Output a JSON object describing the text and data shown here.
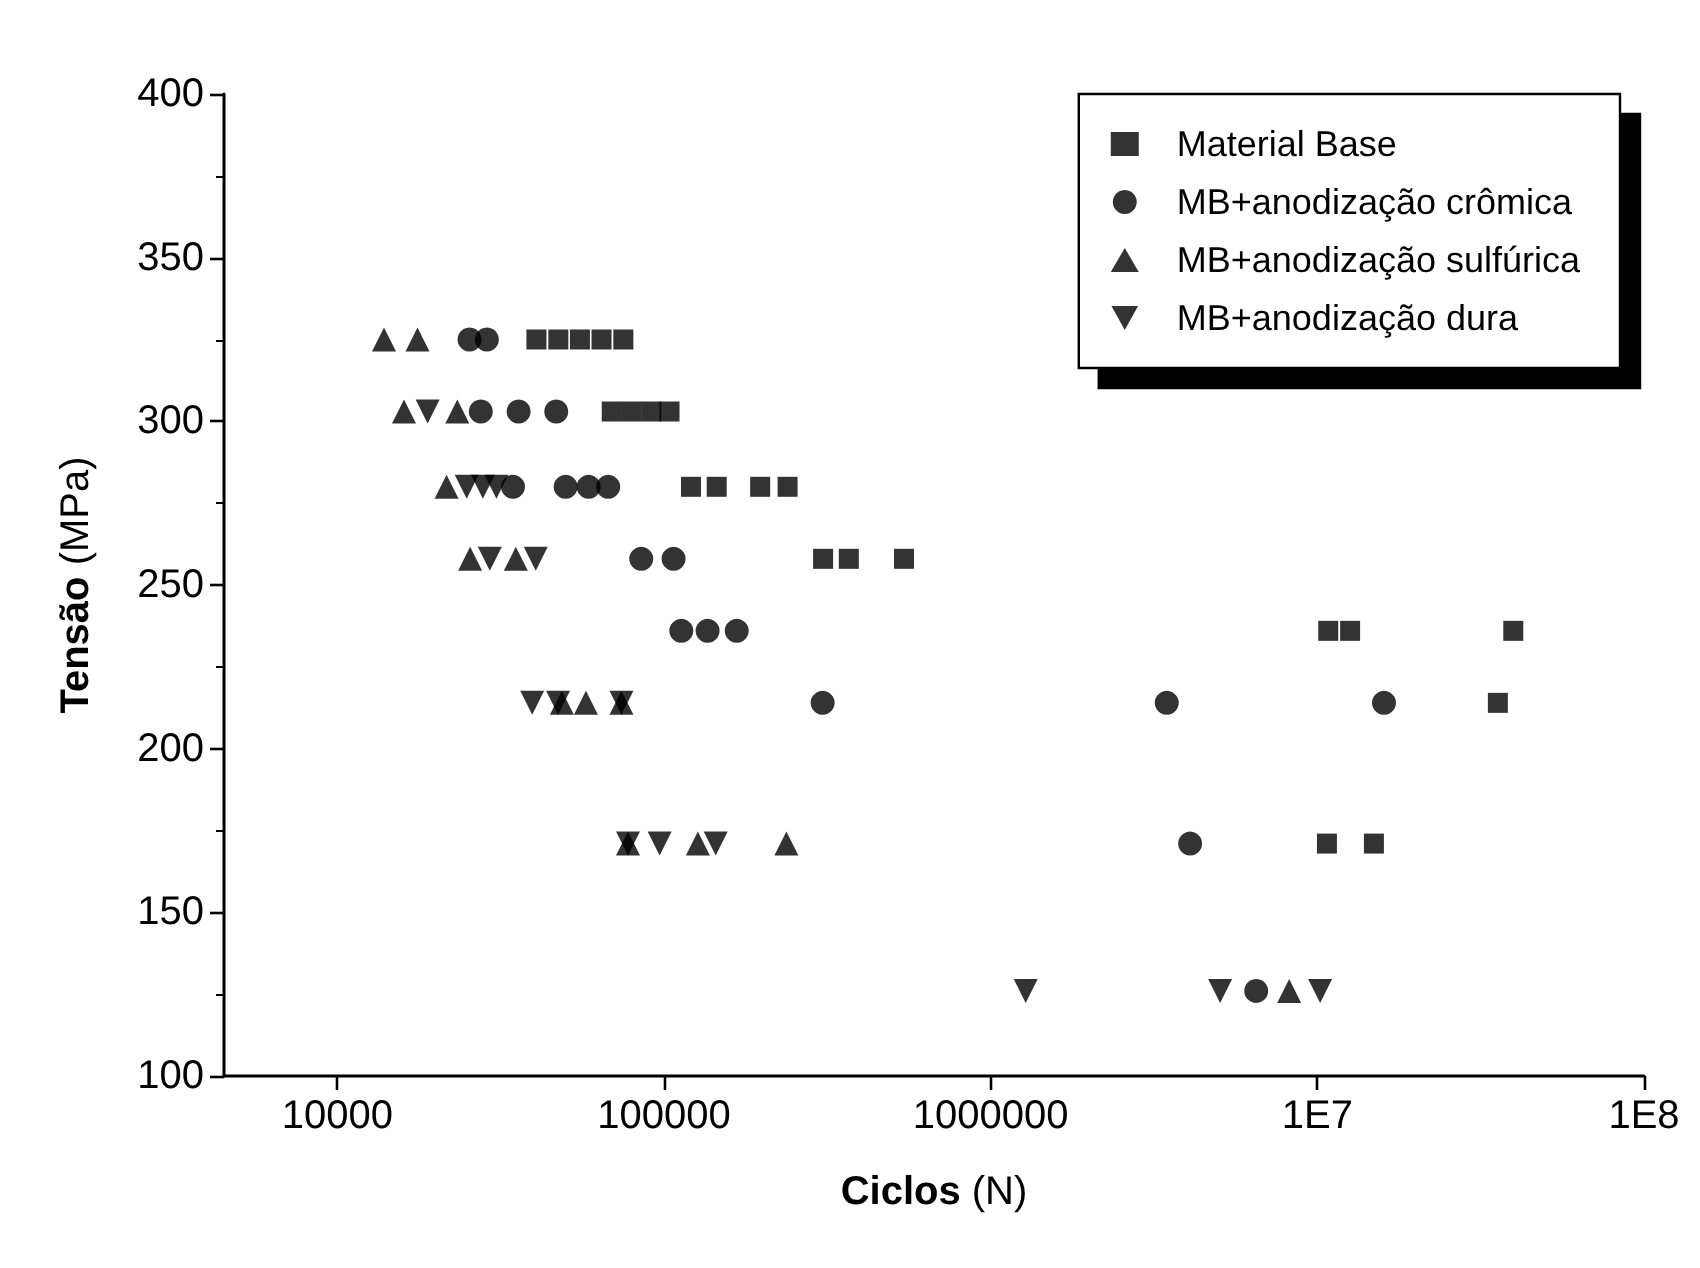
{
  "chart_data": {
    "type": "scatter",
    "xlabel": "Ciclos (N)",
    "ylabel": "Tensão (MPa)",
    "log": "x",
    "xlim": [
      4500,
      100000000
    ],
    "xticks": [
      10000,
      100000,
      1000000,
      {
        "value": 10000000,
        "label": "1E7"
      },
      {
        "value": 100000000,
        "label": "1E8"
      }
    ],
    "ylim": [
      100,
      400
    ],
    "yticks": [
      100,
      150,
      200,
      250,
      300,
      350,
      400
    ],
    "grid": false,
    "legend": "top right",
    "series": [
      {
        "name": "Material Base",
        "color": "#000000",
        "marker": "square",
        "x": [
          40700,
          47500,
          55300,
          64400,
          75100,
          69200,
          79500,
          91400,
          104000,
          121000,
          145000,
          197000,
          239000,
          307000,
          368000,
          543000,
          10800000,
          12600000,
          39800000,
          35700000,
          10700000,
          14900000
        ],
        "values": [
          325,
          325,
          325,
          325,
          325,
          303,
          303,
          303,
          303,
          280,
          280,
          280,
          280,
          258,
          258,
          258,
          236,
          236,
          236,
          214,
          171,
          171
        ]
      },
      {
        "name": "MB+anodização crômica",
        "color": "#000000",
        "marker": "circle",
        "x": [
          25400,
          28700,
          27500,
          35900,
          46800,
          34500,
          50000,
          58800,
          67500,
          85200,
          107000,
          113000,
          136000,
          167000,
          306000,
          3460000,
          16000000,
          4080000,
          6500000
        ],
        "values": [
          325,
          325,
          303,
          303,
          303,
          280,
          280,
          280,
          280,
          258,
          258,
          236,
          236,
          236,
          214,
          214,
          214,
          171,
          126
        ]
      },
      {
        "name": "MB+anodização sulfúrica",
        "color": "#000000",
        "marker": "triangle",
        "x": [
          13900,
          17600,
          16000,
          23300,
          21600,
          25500,
          35200,
          48700,
          57700,
          74100,
          77600,
          127000,
          237000,
          8200000
        ],
        "values": [
          325,
          325,
          303,
          303,
          280,
          258,
          258,
          214,
          214,
          214,
          171,
          171,
          171,
          126
        ]
      },
      {
        "name": "MB+anodização dura",
        "color": "#000000",
        "marker": "triangle-down",
        "x": [
          18900,
          24900,
          27900,
          30700,
          29300,
          40500,
          39500,
          47400,
          74100,
          77600,
          97000,
          144000,
          1280000,
          5040000,
          10200000
        ],
        "values": [
          303,
          280,
          280,
          280,
          258,
          258,
          214,
          214,
          214,
          171,
          171,
          171,
          126,
          126,
          126
        ]
      }
    ]
  }
}
